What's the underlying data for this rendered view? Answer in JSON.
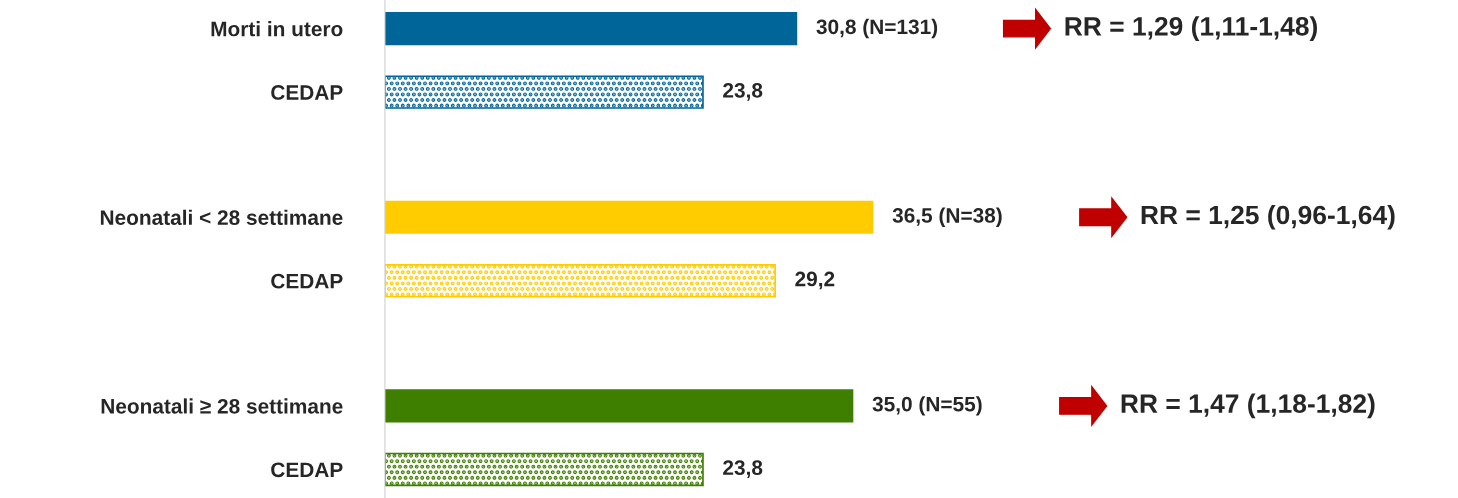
{
  "chart_data": {
    "type": "bar",
    "orientation": "horizontal",
    "categories": [
      "Morti in utero",
      "CEDAP",
      "Neonatali < 28 settimane",
      "CEDAP",
      "Neonatali ≥ 28 settimane",
      "CEDAP"
    ],
    "series": [
      {
        "colors": [
          "#00669a",
          null,
          "#ffcc00",
          null,
          "#3f7f00",
          null
        ],
        "values": [
          30.8,
          null,
          36.5,
          null,
          35.0,
          null
        ],
        "value_labels": [
          "30,8 (N=131)",
          null,
          "36,5 (N=38)",
          null,
          "35,0 (N=55)",
          null
        ]
      },
      {
        "colors": [
          null,
          "#00669a",
          null,
          "#ffcc00",
          null,
          "#3f7f00"
        ],
        "values": [
          null,
          23.8,
          null,
          29.2,
          null,
          23.8
        ],
        "value_labels": [
          null,
          "23,8",
          null,
          "29,2",
          null,
          "23,8"
        ]
      }
    ],
    "annotations": [
      "RR = 1,29 (1,11-1,48)",
      "RR = 1,25 (0,96-1,64)",
      "RR = 1,47 (1,18-1,82)"
    ],
    "grid": false,
    "legend": false
  }
}
